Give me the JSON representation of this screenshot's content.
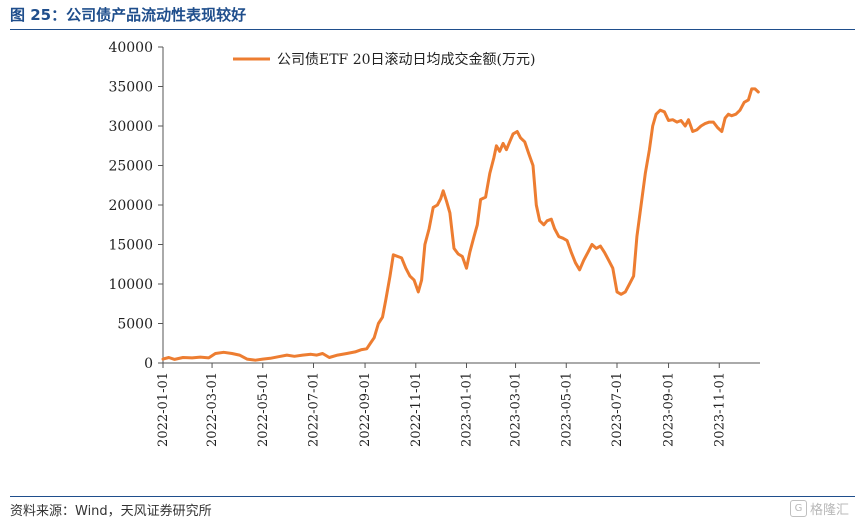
{
  "header": {
    "title": "图 25：公司债产品流动性表现较好"
  },
  "footer": {
    "source": "资料来源：Wind，天风证券研究所",
    "watermark_text": "格隆汇"
  },
  "chart_data": {
    "type": "line",
    "title": "",
    "xlabel": "",
    "ylabel": "",
    "ylim": [
      0,
      40000
    ],
    "yticks": [
      0,
      5000,
      10000,
      15000,
      20000,
      25000,
      30000,
      35000,
      40000
    ],
    "yticklabels": [
      "0",
      "5000",
      "10000",
      "15000",
      "20000",
      "25000",
      "30000",
      "35000",
      "40000"
    ],
    "xrange": [
      "2022-01-01",
      "2023-12-20"
    ],
    "xticks": [
      "2022-01-01",
      "2022-03-01",
      "2022-05-01",
      "2022-07-01",
      "2022-09-01",
      "2022-11-01",
      "2023-01-01",
      "2023-03-01",
      "2023-05-01",
      "2023-07-01",
      "2023-09-01",
      "2023-11-01"
    ],
    "xticklabels": [
      "2022-01-01",
      "2022-03-01",
      "2022-05-01",
      "2022-07-01",
      "2022-09-01",
      "2022-11-01",
      "2023-01-01",
      "2023-03-01",
      "2023-05-01",
      "2023-07-01",
      "2023-09-01",
      "2023-11-01"
    ],
    "grid": false,
    "legend_position": "top-center",
    "series": [
      {
        "name": "公司债ETF 20日滚动日均成交金额(万元)",
        "color": "#ed7d31",
        "points": [
          [
            "2022-01-01",
            500
          ],
          [
            "2022-01-08",
            700
          ],
          [
            "2022-01-15",
            450
          ],
          [
            "2022-01-25",
            700
          ],
          [
            "2022-02-05",
            650
          ],
          [
            "2022-02-15",
            750
          ],
          [
            "2022-02-25",
            650
          ],
          [
            "2022-03-05",
            1200
          ],
          [
            "2022-03-15",
            1350
          ],
          [
            "2022-03-25",
            1200
          ],
          [
            "2022-04-03",
            1000
          ],
          [
            "2022-04-12",
            500
          ],
          [
            "2022-04-22",
            350
          ],
          [
            "2022-05-01",
            500
          ],
          [
            "2022-05-10",
            600
          ],
          [
            "2022-05-20",
            800
          ],
          [
            "2022-05-30",
            1000
          ],
          [
            "2022-06-08",
            850
          ],
          [
            "2022-06-18",
            1000
          ],
          [
            "2022-06-28",
            1100
          ],
          [
            "2022-07-05",
            1000
          ],
          [
            "2022-07-12",
            1200
          ],
          [
            "2022-07-20",
            700
          ],
          [
            "2022-07-30",
            1000
          ],
          [
            "2022-08-10",
            1200
          ],
          [
            "2022-08-20",
            1400
          ],
          [
            "2022-08-28",
            1700
          ],
          [
            "2022-09-03",
            1800
          ],
          [
            "2022-09-08",
            2600
          ],
          [
            "2022-09-12",
            3200
          ],
          [
            "2022-09-17",
            5000
          ],
          [
            "2022-09-22",
            5800
          ],
          [
            "2022-09-26",
            8000
          ],
          [
            "2022-10-01",
            11000
          ],
          [
            "2022-10-05",
            13700
          ],
          [
            "2022-10-10",
            13500
          ],
          [
            "2022-10-15",
            13300
          ],
          [
            "2022-10-20",
            12000
          ],
          [
            "2022-10-25",
            11000
          ],
          [
            "2022-10-30",
            10500
          ],
          [
            "2022-11-04",
            9000
          ],
          [
            "2022-11-08",
            10500
          ],
          [
            "2022-11-12",
            15000
          ],
          [
            "2022-11-17",
            17000
          ],
          [
            "2022-11-22",
            19700
          ],
          [
            "2022-11-27",
            20000
          ],
          [
            "2022-12-01",
            20800
          ],
          [
            "2022-12-04",
            21800
          ],
          [
            "2022-12-08",
            20500
          ],
          [
            "2022-12-12",
            19000
          ],
          [
            "2022-12-17",
            14500
          ],
          [
            "2022-12-22",
            13800
          ],
          [
            "2022-12-27",
            13500
          ],
          [
            "2023-01-01",
            12000
          ],
          [
            "2023-01-05",
            14000
          ],
          [
            "2023-01-10",
            16000
          ],
          [
            "2023-01-14",
            17500
          ],
          [
            "2023-01-18",
            20700
          ],
          [
            "2023-01-24",
            21000
          ],
          [
            "2023-01-29",
            24000
          ],
          [
            "2023-02-03",
            26000
          ],
          [
            "2023-02-06",
            27500
          ],
          [
            "2023-02-10",
            26800
          ],
          [
            "2023-02-14",
            27800
          ],
          [
            "2023-02-18",
            27000
          ],
          [
            "2023-02-22",
            28000
          ],
          [
            "2023-02-26",
            29000
          ],
          [
            "2023-03-03",
            29300
          ],
          [
            "2023-03-07",
            28500
          ],
          [
            "2023-03-12",
            28000
          ],
          [
            "2023-03-17",
            26500
          ],
          [
            "2023-03-22",
            25000
          ],
          [
            "2023-03-26",
            20000
          ],
          [
            "2023-03-30",
            18000
          ],
          [
            "2023-04-04",
            17500
          ],
          [
            "2023-04-08",
            18000
          ],
          [
            "2023-04-13",
            18200
          ],
          [
            "2023-04-17",
            17000
          ],
          [
            "2023-04-22",
            16000
          ],
          [
            "2023-04-27",
            15800
          ],
          [
            "2023-05-02",
            15500
          ],
          [
            "2023-05-07",
            14000
          ],
          [
            "2023-05-12",
            12700
          ],
          [
            "2023-05-17",
            11800
          ],
          [
            "2023-05-22",
            13000
          ],
          [
            "2023-05-27",
            14000
          ],
          [
            "2023-06-01",
            15000
          ],
          [
            "2023-06-06",
            14500
          ],
          [
            "2023-06-11",
            14800
          ],
          [
            "2023-06-16",
            14000
          ],
          [
            "2023-06-21",
            13000
          ],
          [
            "2023-06-26",
            12000
          ],
          [
            "2023-07-01",
            9000
          ],
          [
            "2023-07-06",
            8700
          ],
          [
            "2023-07-11",
            9000
          ],
          [
            "2023-07-16",
            10000
          ],
          [
            "2023-07-21",
            11000
          ],
          [
            "2023-07-25",
            16000
          ],
          [
            "2023-07-30",
            20000
          ],
          [
            "2023-08-04",
            24000
          ],
          [
            "2023-08-09",
            27000
          ],
          [
            "2023-08-13",
            30000
          ],
          [
            "2023-08-17",
            31500
          ],
          [
            "2023-08-22",
            32000
          ],
          [
            "2023-08-27",
            31800
          ],
          [
            "2023-09-01",
            30700
          ],
          [
            "2023-09-06",
            30800
          ],
          [
            "2023-09-11",
            30500
          ],
          [
            "2023-09-16",
            30700
          ],
          [
            "2023-09-21",
            30000
          ],
          [
            "2023-09-25",
            30800
          ],
          [
            "2023-09-30",
            29300
          ],
          [
            "2023-10-05",
            29500
          ],
          [
            "2023-10-10",
            30000
          ],
          [
            "2023-10-15",
            30300
          ],
          [
            "2023-10-20",
            30500
          ],
          [
            "2023-10-25",
            30500
          ],
          [
            "2023-10-30",
            29800
          ],
          [
            "2023-11-04",
            29300
          ],
          [
            "2023-11-08",
            31000
          ],
          [
            "2023-11-12",
            31500
          ],
          [
            "2023-11-16",
            31300
          ],
          [
            "2023-11-21",
            31500
          ],
          [
            "2023-11-26",
            32000
          ],
          [
            "2023-12-01",
            33000
          ],
          [
            "2023-12-06",
            33300
          ],
          [
            "2023-12-10",
            34700
          ],
          [
            "2023-12-14",
            34700
          ],
          [
            "2023-12-18",
            34300
          ]
        ]
      }
    ]
  }
}
